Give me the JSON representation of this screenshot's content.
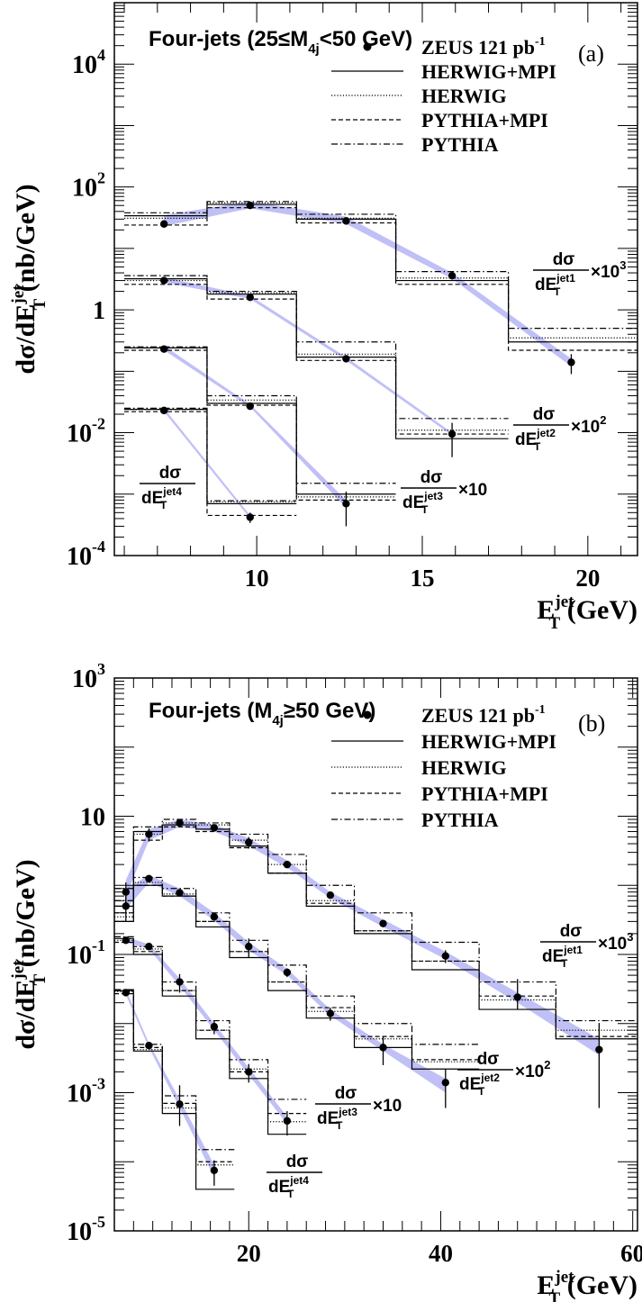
{
  "chart_data": [
    {
      "type": "line",
      "panel_label": "(a)",
      "title": "Four-jets (25≤M",
      "title_sub": "4j",
      "title_tail": "<50 GeV)",
      "ylabel": "dσ/dE",
      "ylabel_sup": "jet",
      "ylabel_sub": "T",
      "ylabel_tail": " (nb/GeV)",
      "xlabel": "E",
      "xlabel_sup": "jet",
      "xlabel_sub": "T",
      "xlabel_tail": " (GeV)",
      "x_ticks": [
        "10",
        "15",
        "20"
      ],
      "x_tick_values": [
        10,
        15,
        20
      ],
      "xlim": [
        5.7,
        21.5
      ],
      "ylim": [
        0.0001,
        100000
      ],
      "y_scale": "log",
      "y_ticks": [
        {
          "value": 10000,
          "base": "10",
          "exp": "4"
        },
        {
          "value": 100,
          "base": "10",
          "exp": "2"
        },
        {
          "value": 1,
          "base": "1",
          "exp": ""
        },
        {
          "value": 0.01,
          "base": "10",
          "exp": "-2"
        },
        {
          "value": 0.0001,
          "base": "10",
          "exp": "-4"
        }
      ],
      "legend": [
        {
          "label": "ZEUS 121 pb",
          "sup": "-1",
          "style": "points"
        },
        {
          "label": "HERWIG+MPI",
          "style": "solid"
        },
        {
          "label": "HERWIG",
          "style": "dotted"
        },
        {
          "label": "PYTHIA+MPI",
          "style": "dashed"
        },
        {
          "label": "PYTHIA",
          "style": "dashdot"
        }
      ],
      "bin_edges": [
        6,
        8.5,
        11.2,
        14.2,
        17.6,
        21.5
      ],
      "series": [
        {
          "label_num": "dσ",
          "label_den": "dE",
          "label_sup": "jet1",
          "label_sub": "T",
          "label_scale": "×10",
          "label_scale_exp": "3",
          "x": [
            7.2,
            9.8,
            12.7,
            15.9,
            19.5
          ],
          "y": [
            25,
            50,
            28,
            3.6,
            0.14
          ],
          "yerr_lo": [
            3,
            5,
            3,
            0.5,
            0.05
          ],
          "yerr_hi": [
            3,
            5,
            3,
            0.5,
            0.05
          ],
          "band_lo": [
            23,
            45,
            25,
            3.2,
            0.12
          ],
          "band_hi": [
            35,
            58,
            33,
            4.0,
            0.16
          ],
          "bins": [
            6,
            8.5,
            11.2,
            14.2,
            17.6,
            21.5
          ],
          "herwig_mpi": [
            34,
            52,
            30,
            3.0,
            0.3
          ],
          "herwig": [
            31,
            55,
            31,
            3.3,
            0.35
          ],
          "pythia_mpi": [
            24,
            46,
            26,
            2.6,
            0.22
          ],
          "pythia": [
            38,
            58,
            36,
            4.2,
            0.5
          ]
        },
        {
          "label_num": "dσ",
          "label_den": "dE",
          "label_sup": "jet2",
          "label_sub": "T",
          "label_scale": "×10",
          "label_scale_exp": "2",
          "x": [
            7.2,
            9.8,
            12.7,
            15.9
          ],
          "y": [
            3.0,
            1.6,
            0.16,
            0.0095
          ],
          "yerr_lo": [
            0.3,
            0.2,
            0.02,
            0.0055
          ],
          "yerr_hi": [
            0.3,
            0.2,
            0.02,
            0.005
          ],
          "band_lo": [
            2.8,
            1.5,
            0.15,
            0.009
          ],
          "band_hi": [
            3.4,
            1.7,
            0.17,
            0.01
          ],
          "bins": [
            6,
            8.5,
            11.2,
            14.2,
            17.6
          ],
          "herwig_mpi": [
            3.2,
            1.8,
            0.17,
            0.008
          ],
          "herwig": [
            3.0,
            1.9,
            0.19,
            0.011
          ],
          "pythia_mpi": [
            2.6,
            1.5,
            0.15,
            0.0095
          ],
          "pythia": [
            3.6,
            2.0,
            0.3,
            0.017
          ]
        },
        {
          "label_num": "dσ",
          "label_den": "dE",
          "label_sup": "jet3",
          "label_sub": "T",
          "label_scale": "×10",
          "label_scale_exp": "",
          "x": [
            7.2,
            9.8,
            12.7
          ],
          "y": [
            0.23,
            0.027,
            0.0007
          ],
          "yerr_lo": [
            0.02,
            0.003,
            0.0004
          ],
          "yerr_hi": [
            0.02,
            0.003,
            0.0004
          ],
          "band_lo": [
            0.22,
            0.026,
            0.0006
          ],
          "band_hi": [
            0.26,
            0.029,
            0.0008
          ],
          "bins": [
            6,
            8.5,
            11.2,
            14.2
          ],
          "herwig_mpi": [
            0.24,
            0.03,
            0.001
          ],
          "herwig": [
            0.24,
            0.034,
            0.0009
          ],
          "pythia_mpi": [
            0.22,
            0.028,
            0.0008
          ],
          "pythia": [
            0.25,
            0.04,
            0.0015
          ]
        },
        {
          "label_num": "dσ",
          "label_den": "dE",
          "label_sup": "jet4",
          "label_sub": "T",
          "label_scale": "",
          "label_scale_exp": "",
          "x": [
            7.2,
            9.8
          ],
          "y": [
            0.023,
            0.00042
          ],
          "yerr_lo": [
            0.002,
            8e-05
          ],
          "yerr_hi": [
            0.002,
            8e-05
          ],
          "band_lo": [
            0.022,
            0.0004
          ],
          "band_hi": [
            0.025,
            0.00045
          ],
          "bins": [
            6,
            8.5,
            11.2
          ],
          "herwig_mpi": [
            0.024,
            0.0007
          ],
          "herwig": [
            0.024,
            0.00075
          ],
          "pythia_mpi": [
            0.022,
            0.00045
          ],
          "pythia": [
            0.025,
            0.00078
          ]
        }
      ]
    },
    {
      "type": "line",
      "panel_label": "(b)",
      "title": "Four-jets (M",
      "title_sub": "4j",
      "title_tail": "≥50 GeV)",
      "ylabel": "dσ/dE",
      "ylabel_sup": "jet",
      "ylabel_sub": "T",
      "ylabel_tail": " (nb/GeV)",
      "xlabel": "E",
      "xlabel_sup": "jet",
      "xlabel_sub": "T",
      "xlabel_tail": " (GeV)",
      "x_ticks": [
        "20",
        "40",
        "60"
      ],
      "x_tick_values": [
        20,
        40,
        60
      ],
      "xlim": [
        6,
        60.5
      ],
      "ylim": [
        1e-05,
        1000
      ],
      "y_scale": "log",
      "y_ticks": [
        {
          "value": 1000,
          "base": "10",
          "exp": "3"
        },
        {
          "value": 10,
          "base": "10",
          "exp": ""
        },
        {
          "value": 0.1,
          "base": "10",
          "exp": "-1"
        },
        {
          "value": 0.001,
          "base": "10",
          "exp": "-3"
        },
        {
          "value": 1e-05,
          "base": "10",
          "exp": "-5"
        }
      ],
      "legend": [
        {
          "label": "ZEUS 121 pb",
          "sup": "-1",
          "style": "points"
        },
        {
          "label": "HERWIG+MPI",
          "style": "solid"
        },
        {
          "label": "HERWIG",
          "style": "dotted"
        },
        {
          "label": "PYTHIA+MPI",
          "style": "dashed"
        },
        {
          "label": "PYTHIA",
          "style": "dashdot"
        }
      ],
      "series": [
        {
          "label_num": "dσ",
          "label_den": "dE",
          "label_sup": "jet1",
          "label_sub": "T",
          "label_scale": "×10",
          "label_scale_exp": "3",
          "x": [
            7.2,
            9.6,
            12.8,
            16.4,
            20,
            24,
            28.5,
            34,
            40.5,
            48,
            56.5
          ],
          "y": [
            0.8,
            5.5,
            8,
            6.8,
            4.2,
            2.0,
            0.72,
            0.28,
            0.095,
            0.024,
            0.0042
          ],
          "yerr_lo": [
            0.3,
            1.2,
            1,
            0.7,
            0.8,
            0.2,
            0.08,
            0.03,
            0.02,
            0.008,
            0.0036
          ],
          "yerr_hi": [
            0.3,
            1.2,
            1,
            0.7,
            0.8,
            0.2,
            0.08,
            0.03,
            0.02,
            0.02,
            0.006
          ],
          "band_lo": [
            0.7,
            4.5,
            7,
            6,
            3.7,
            1.8,
            0.65,
            0.25,
            0.085,
            0.02,
            0.0035
          ],
          "band_hi": [
            1.2,
            6.5,
            9,
            7.6,
            4.8,
            2.3,
            0.8,
            0.32,
            0.11,
            0.028,
            0.006
          ],
          "bins": [
            6,
            8,
            11,
            14.5,
            18,
            22,
            26,
            31,
            37,
            44,
            52,
            60.5
          ],
          "herwig_mpi": [
            0.5,
            6,
            7.5,
            6.5,
            3.7,
            1.5,
            0.5,
            0.2,
            0.06,
            0.016,
            0.006
          ],
          "herwig": [
            0.4,
            5.5,
            8,
            7.5,
            4.5,
            2.0,
            0.6,
            0.22,
            0.08,
            0.022,
            0.008
          ],
          "pythia_mpi": [
            0.3,
            4.5,
            7,
            6,
            3.5,
            1.5,
            0.55,
            0.22,
            0.08,
            0.025,
            0.0065
          ],
          "pythia": [
            0.6,
            7,
            9,
            8,
            5.5,
            2.8,
            1.0,
            0.4,
            0.15,
            0.04,
            0.011
          ]
        },
        {
          "label_num": "dσ",
          "label_den": "dE",
          "label_sup": "jet2",
          "label_sub": "T",
          "label_scale": "×10",
          "label_scale_exp": "2",
          "x": [
            7.2,
            9.6,
            12.8,
            16.4,
            20,
            24,
            28.5,
            34,
            40.5
          ],
          "y": [
            0.5,
            1.25,
            0.78,
            0.35,
            0.13,
            0.055,
            0.014,
            0.0045,
            0.0014
          ],
          "yerr_lo": [
            0.2,
            0.15,
            0.08,
            0.04,
            0.04,
            0.008,
            0.003,
            0.002,
            0.0008
          ],
          "yerr_hi": [
            0.2,
            0.15,
            0.08,
            0.04,
            0.04,
            0.008,
            0.003,
            0.002,
            0.0008
          ],
          "band_lo": [
            0.45,
            1.1,
            0.7,
            0.31,
            0.115,
            0.05,
            0.013,
            0.004,
            0.001
          ],
          "band_hi": [
            0.9,
            1.4,
            0.9,
            0.4,
            0.15,
            0.062,
            0.016,
            0.005,
            0.0016
          ],
          "bins": [
            6,
            8,
            11,
            14.5,
            18,
            22,
            26,
            31,
            37,
            44
          ],
          "herwig_mpi": [
            0.3,
            1.0,
            0.7,
            0.25,
            0.09,
            0.03,
            0.012,
            0.0045,
            0.0022
          ],
          "herwig": [
            0.35,
            1.1,
            0.75,
            0.3,
            0.11,
            0.04,
            0.015,
            0.006,
            0.0028
          ],
          "pythia_mpi": [
            0.4,
            1.0,
            0.7,
            0.3,
            0.11,
            0.04,
            0.017,
            0.0065,
            0.003
          ],
          "pythia": [
            0.9,
            1.3,
            0.9,
            0.4,
            0.16,
            0.07,
            0.025,
            0.01,
            0.005
          ]
        },
        {
          "label_num": "dσ",
          "label_den": "dE",
          "label_sup": "jet3",
          "label_sub": "T",
          "label_scale": "×10",
          "label_scale_exp": "",
          "x": [
            7.2,
            9.6,
            12.8,
            16.4,
            20,
            24
          ],
          "y": [
            0.16,
            0.13,
            0.04,
            0.009,
            0.002,
            0.00039
          ],
          "yerr_lo": [
            0.01,
            0.01,
            0.012,
            0.002,
            0.0006,
            0.00015
          ],
          "yerr_hi": [
            0.01,
            0.01,
            0.012,
            0.002,
            0.0006,
            0.00015
          ],
          "band_lo": [
            0.15,
            0.12,
            0.035,
            0.008,
            0.0018,
            0.00035
          ],
          "band_hi": [
            0.18,
            0.14,
            0.045,
            0.01,
            0.0023,
            0.00045
          ],
          "bins": [
            6,
            8,
            11,
            14.5,
            18,
            22,
            26
          ],
          "herwig_mpi": [
            0.17,
            0.1,
            0.025,
            0.006,
            0.0016,
            0.00025
          ],
          "herwig": [
            0.16,
            0.12,
            0.03,
            0.008,
            0.0022,
            0.00038
          ],
          "pythia_mpi": [
            0.15,
            0.11,
            0.03,
            0.008,
            0.002,
            0.0005
          ],
          "pythia": [
            0.18,
            0.13,
            0.04,
            0.011,
            0.003,
            0.0008
          ]
        },
        {
          "label_num": "dσ",
          "label_den": "dE",
          "label_sup": "jet4",
          "label_sub": "T",
          "label_scale": "",
          "label_scale_exp": "",
          "x": [
            7.2,
            9.6,
            12.8,
            16.4
          ],
          "y": [
            0.028,
            0.0048,
            0.00068,
            7.5e-05
          ],
          "yerr_lo": [
            0.002,
            0.0004,
            0.00035,
            3e-05
          ],
          "yerr_hi": [
            0.002,
            0.0004,
            0.0006,
            3e-05
          ],
          "band_lo": [
            0.026,
            0.0045,
            0.0006,
            6e-05
          ],
          "band_hi": [
            0.031,
            0.0052,
            0.0008,
            9e-05
          ],
          "bins": [
            6,
            8,
            11,
            14.5,
            18.5
          ],
          "herwig_mpi": [
            0.03,
            0.004,
            0.0005,
            4e-05
          ],
          "herwig": [
            0.029,
            0.0042,
            0.0006,
            9e-05
          ],
          "pythia_mpi": [
            0.027,
            0.0045,
            0.0007,
            0.0001
          ],
          "pythia": [
            0.031,
            0.005,
            0.0009,
            0.00015
          ]
        }
      ]
    }
  ]
}
